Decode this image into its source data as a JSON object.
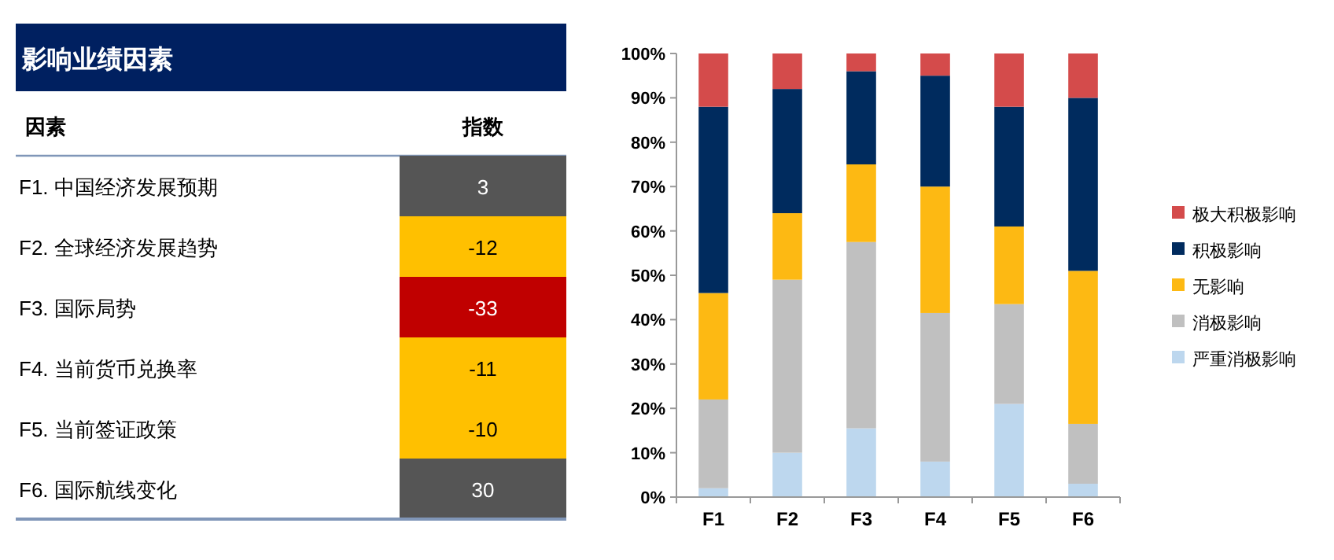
{
  "chart_data": [
    {
      "type": "heatmap",
      "title": "影响业绩因素",
      "ylabel": "因素",
      "categories": [
        "指数"
      ],
      "y_categories": [
        "F1. 中国经济发展预期",
        "F2. 全球经济发展趋势",
        "F3. 国际局势",
        "F4. 当前货币兑换率",
        "F5. 当前签证政策",
        "F6. 国际航线变化"
      ],
      "cells": [
        [
          3
        ],
        [
          -12
        ],
        [
          -33
        ],
        [
          -11
        ],
        [
          -10
        ],
        [
          30
        ]
      ],
      "colors": [
        "#555555",
        "#ffc000",
        "#c00000",
        "#ffc000",
        "#ffc000",
        "#555555"
      ],
      "data_labels": true
    },
    {
      "type": "bar",
      "stacked": true,
      "categories": [
        "F1",
        "F2",
        "F3",
        "F4",
        "F5",
        "F6"
      ],
      "series": [
        {
          "name": "严重消极影响",
          "color": "#bdd7ee",
          "values": [
            2,
            10,
            15.5,
            8,
            21,
            3
          ]
        },
        {
          "name": "消极影响",
          "color": "#c0c0c0",
          "values": [
            20,
            39,
            42,
            33.5,
            22.5,
            13.5
          ]
        },
        {
          "name": "无影响",
          "color": "#fdb913",
          "values": [
            24,
            15,
            17.5,
            28.5,
            17.5,
            34.5
          ]
        },
        {
          "name": "积极影响",
          "color": "#002b5e",
          "values": [
            42,
            28,
            21,
            25,
            27,
            39
          ]
        },
        {
          "name": "极大积极影响",
          "color": "#d44b4b",
          "values": [
            12,
            8,
            4,
            5,
            12,
            10
          ]
        }
      ],
      "ylim": [
        0,
        100
      ],
      "yticks": [
        {
          "value": 0,
          "label": "0%"
        },
        {
          "value": 10,
          "label": "10%"
        },
        {
          "value": 20,
          "label": "20%"
        },
        {
          "value": 30,
          "label": "30%"
        },
        {
          "value": 40,
          "label": "40%"
        },
        {
          "value": 50,
          "label": "50%"
        },
        {
          "value": 60,
          "label": "60%"
        },
        {
          "value": 70,
          "label": "70%"
        },
        {
          "value": 80,
          "label": "80%"
        },
        {
          "value": 90,
          "label": "90%"
        },
        {
          "value": 100,
          "label": "100%"
        }
      ],
      "grid": false,
      "legend": "right"
    }
  ]
}
